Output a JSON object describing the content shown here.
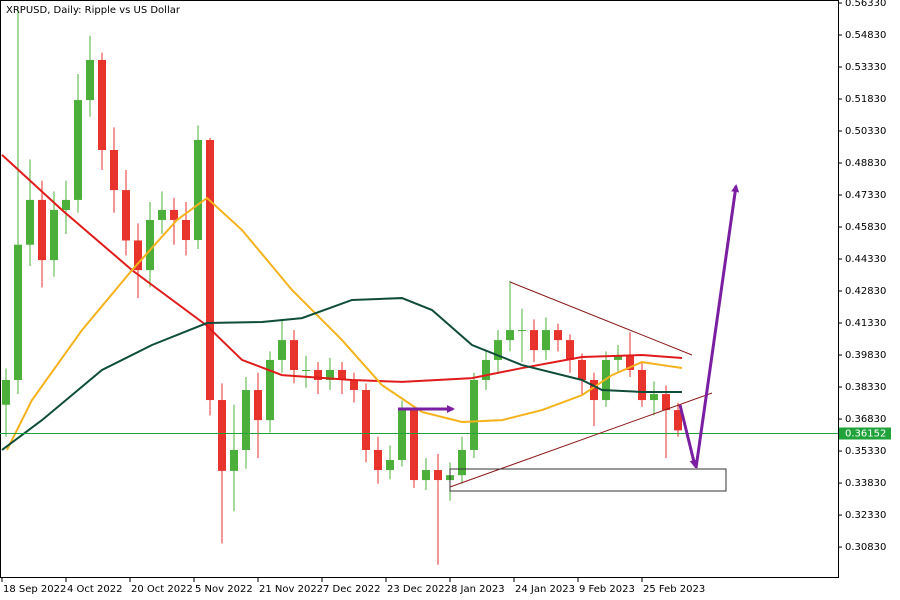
{
  "chart_data": {
    "type": "candlestick",
    "title": "XRPUSD, Daily:  Ripple vs US Dollar",
    "ylim": [
      0.2938,
      0.5647
    ],
    "yticks": [
      {
        "value": 0.5633,
        "label": "0.56330"
      },
      {
        "value": 0.5483,
        "label": "0.54830"
      },
      {
        "value": 0.5333,
        "label": "0.53330"
      },
      {
        "value": 0.5183,
        "label": "0.51830"
      },
      {
        "value": 0.5033,
        "label": "0.50330"
      },
      {
        "value": 0.4883,
        "label": "0.48830"
      },
      {
        "value": 0.4733,
        "label": "0.47330"
      },
      {
        "value": 0.4583,
        "label": "0.45830"
      },
      {
        "value": 0.4433,
        "label": "0.44330"
      },
      {
        "value": 0.4283,
        "label": "0.42830"
      },
      {
        "value": 0.4133,
        "label": "0.41330"
      },
      {
        "value": 0.3983,
        "label": "0.39830"
      },
      {
        "value": 0.3833,
        "label": "0.38330"
      },
      {
        "value": 0.3683,
        "label": "0.36830"
      },
      {
        "value": 0.3533,
        "label": "0.35330"
      },
      {
        "value": 0.3383,
        "label": "0.33830"
      },
      {
        "value": 0.3233,
        "label": "0.32330"
      },
      {
        "value": 0.3083,
        "label": "0.30830"
      }
    ],
    "xlim": [
      -0.5,
      209
    ],
    "xticks": [
      {
        "value": 0,
        "label": "18 Sep 2022"
      },
      {
        "value": 16,
        "label": "4 Oct 2022"
      },
      {
        "value": 32,
        "label": "20 Oct 2022"
      },
      {
        "value": 48,
        "label": "5 Nov 2022"
      },
      {
        "value": 64,
        "label": "21 Nov 2022"
      },
      {
        "value": 80,
        "label": "7 Dec 2022"
      },
      {
        "value": 96,
        "label": "23 Dec 2022"
      },
      {
        "value": 112,
        "label": "8 Jan 2023"
      },
      {
        "value": 128,
        "label": "24 Jan 2023"
      },
      {
        "value": 144,
        "label": "9 Feb 2023"
      },
      {
        "value": 160,
        "label": "25 Feb 2023"
      }
    ],
    "up_color": "#4caf3a",
    "down_color": "#e8322c",
    "x": [
      1,
      4,
      7,
      10,
      13,
      16,
      19,
      22,
      25,
      28,
      31,
      34,
      37,
      40,
      43,
      46,
      49,
      52,
      55,
      58,
      61,
      64,
      67,
      70,
      73,
      76,
      79,
      82,
      85,
      88,
      91,
      94,
      97,
      100,
      103,
      106,
      109,
      112,
      115,
      118,
      121,
      124,
      127,
      130,
      133,
      136,
      139,
      142,
      145,
      148,
      151,
      154,
      157,
      160,
      163,
      166,
      169
    ],
    "candles": [
      [
        0.375,
        0.392,
        0.36,
        0.3866
      ],
      [
        0.3866,
        0.56,
        0.38,
        0.45
      ],
      [
        0.45,
        0.49,
        0.44,
        0.471
      ],
      [
        0.471,
        0.48,
        0.43,
        0.4428
      ],
      [
        0.4428,
        0.475,
        0.435,
        0.4663
      ],
      [
        0.4663,
        0.48,
        0.455,
        0.471
      ],
      [
        0.471,
        0.53,
        0.465,
        0.5178
      ],
      [
        0.5178,
        0.548,
        0.51,
        0.5366
      ],
      [
        0.5366,
        0.54,
        0.485,
        0.4944
      ],
      [
        0.4944,
        0.505,
        0.465,
        0.4756
      ],
      [
        0.4756,
        0.485,
        0.445,
        0.452
      ],
      [
        0.452,
        0.46,
        0.425,
        0.4381
      ],
      [
        0.4381,
        0.47,
        0.43,
        0.4616
      ],
      [
        0.4616,
        0.475,
        0.455,
        0.4663
      ],
      [
        0.4663,
        0.472,
        0.45,
        0.4616
      ],
      [
        0.4616,
        0.47,
        0.445,
        0.4522
      ],
      [
        0.4522,
        0.506,
        0.448,
        0.4991
      ],
      [
        0.4991,
        0.5,
        0.37,
        0.3772
      ],
      [
        0.3772,
        0.385,
        0.31,
        0.344
      ],
      [
        0.344,
        0.375,
        0.325,
        0.3538
      ],
      [
        0.3538,
        0.388,
        0.345,
        0.3819
      ],
      [
        0.3819,
        0.39,
        0.35,
        0.3678
      ],
      [
        0.3678,
        0.4,
        0.362,
        0.396
      ],
      [
        0.396,
        0.415,
        0.39,
        0.4053
      ],
      [
        0.4053,
        0.41,
        0.385,
        0.3913
      ],
      [
        0.3913,
        0.398,
        0.383,
        0.3913
      ],
      [
        0.3913,
        0.395,
        0.38,
        0.3866
      ],
      [
        0.3866,
        0.397,
        0.382,
        0.3913
      ],
      [
        0.3913,
        0.395,
        0.38,
        0.3866
      ],
      [
        0.3866,
        0.39,
        0.376,
        0.3819
      ],
      [
        0.3819,
        0.385,
        0.348,
        0.3538
      ],
      [
        0.3538,
        0.36,
        0.338,
        0.3444
      ],
      [
        0.3444,
        0.356,
        0.34,
        0.3491
      ],
      [
        0.3491,
        0.377,
        0.346,
        0.3725
      ],
      [
        0.3725,
        0.374,
        0.336,
        0.3397
      ],
      [
        0.3397,
        0.35,
        0.335,
        0.3444
      ],
      [
        0.3444,
        0.352,
        0.3,
        0.3397
      ],
      [
        0.3397,
        0.348,
        0.33,
        0.342
      ],
      [
        0.342,
        0.36,
        0.338,
        0.3538
      ],
      [
        0.3538,
        0.39,
        0.35,
        0.3866
      ],
      [
        0.3866,
        0.4,
        0.382,
        0.396
      ],
      [
        0.396,
        0.41,
        0.39,
        0.4053
      ],
      [
        0.4053,
        0.433,
        0.4,
        0.41
      ],
      [
        0.41,
        0.42,
        0.395,
        0.41
      ],
      [
        0.41,
        0.415,
        0.395,
        0.4006
      ],
      [
        0.4006,
        0.416,
        0.396,
        0.41
      ],
      [
        0.41,
        0.413,
        0.4,
        0.4053
      ],
      [
        0.4053,
        0.408,
        0.39,
        0.396
      ],
      [
        0.396,
        0.399,
        0.38,
        0.3866
      ],
      [
        0.3866,
        0.39,
        0.365,
        0.3772
      ],
      [
        0.3772,
        0.4,
        0.374,
        0.396
      ],
      [
        0.396,
        0.403,
        0.39,
        0.3983
      ],
      [
        0.3983,
        0.409,
        0.388,
        0.3913
      ],
      [
        0.3913,
        0.395,
        0.374,
        0.3772
      ],
      [
        0.3772,
        0.386,
        0.37,
        0.38
      ],
      [
        0.38,
        0.384,
        0.35,
        0.3725
      ],
      [
        0.3725,
        0.376,
        0.36,
        0.363
      ]
    ],
    "lines": [
      {
        "color": "#e01b1b",
        "x": [
          0,
          15,
          32.5,
          51,
          60,
          70,
          87.5,
          100,
          117.5,
          130,
          145,
          160,
          170
        ],
        "values": [
          0.4921,
          0.4663,
          0.4381,
          0.4124,
          0.396,
          0.3889,
          0.3866,
          0.3857,
          0.3875,
          0.3922,
          0.3974,
          0.3983,
          0.3969
        ]
      },
      {
        "color": "#f5b21b",
        "x": [
          1.25,
          7.5,
          20,
          32.5,
          43.75,
          51.25,
          60,
          72.5,
          85,
          95,
          105,
          115,
          125,
          135,
          145,
          152.5,
          160,
          165,
          170
        ],
        "values": [
          0.3538,
          0.3772,
          0.41,
          0.4381,
          0.4616,
          0.4719,
          0.4569,
          0.4288,
          0.4053,
          0.3842,
          0.3716,
          0.3669,
          0.3678,
          0.3725,
          0.3795,
          0.3889,
          0.395,
          0.3936,
          0.3922
        ]
      },
      {
        "color": "#0f4d3a",
        "x": [
          0,
          10,
          25,
          37.5,
          51.25,
          65,
          75,
          87.5,
          100,
          107.5,
          117.5,
          130,
          145,
          150,
          160,
          170
        ],
        "values": [
          0.3538,
          0.3678,
          0.3913,
          0.403,
          0.4133,
          0.4138,
          0.4156,
          0.4241,
          0.425,
          0.4194,
          0.403,
          0.3936,
          0.3866,
          0.3819,
          0.381,
          0.381
        ]
      }
    ],
    "price_line": {
      "value": 0.36152,
      "label": "0.36152",
      "color": "#1fa33a"
    }
  }
}
